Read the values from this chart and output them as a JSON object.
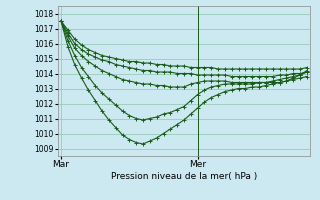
{
  "xlabel": "Pression niveau de la mer( hPa )",
  "bg_color": "#cce8f0",
  "grid_color": "#99ccbb",
  "line_color": "#1a5c1a",
  "marker": "+",
  "ylim": [
    1008.5,
    1018.5
  ],
  "yticks": [
    1009,
    1010,
    1011,
    1012,
    1013,
    1014,
    1015,
    1016,
    1017,
    1018
  ],
  "xtick_labels": [
    "Mar",
    "Mer"
  ],
  "xtick_positions": [
    0,
    20
  ],
  "vline_x": 20,
  "num_points": 37,
  "series": [
    [
      1017.5,
      1016.9,
      1016.3,
      1015.9,
      1015.6,
      1015.4,
      1015.2,
      1015.1,
      1015.0,
      1014.9,
      1014.8,
      1014.8,
      1014.7,
      1014.7,
      1014.6,
      1014.6,
      1014.5,
      1014.5,
      1014.5,
      1014.4,
      1014.4,
      1014.4,
      1014.4,
      1014.3,
      1014.3,
      1014.3,
      1014.3,
      1014.3,
      1014.3,
      1014.3,
      1014.3,
      1014.3,
      1014.3,
      1014.3,
      1014.3,
      1014.3,
      1014.4
    ],
    [
      1017.5,
      1016.7,
      1016.0,
      1015.6,
      1015.3,
      1015.1,
      1014.9,
      1014.8,
      1014.6,
      1014.5,
      1014.4,
      1014.3,
      1014.2,
      1014.2,
      1014.1,
      1014.1,
      1014.1,
      1014.0,
      1014.0,
      1014.0,
      1013.9,
      1013.9,
      1013.9,
      1013.9,
      1013.9,
      1013.8,
      1013.8,
      1013.8,
      1013.8,
      1013.8,
      1013.8,
      1013.8,
      1013.9,
      1013.9,
      1014.0,
      1014.0,
      1014.1
    ],
    [
      1017.5,
      1016.5,
      1015.7,
      1015.2,
      1014.8,
      1014.5,
      1014.2,
      1014.0,
      1013.8,
      1013.6,
      1013.5,
      1013.4,
      1013.3,
      1013.3,
      1013.2,
      1013.2,
      1013.1,
      1013.1,
      1013.1,
      1013.3,
      1013.4,
      1013.5,
      1013.5,
      1013.5,
      1013.5,
      1013.4,
      1013.4,
      1013.4,
      1013.4,
      1013.4,
      1013.4,
      1013.4,
      1013.4,
      1013.5,
      1013.6,
      1013.7,
      1013.8
    ],
    [
      1017.5,
      1016.2,
      1015.2,
      1014.4,
      1013.8,
      1013.2,
      1012.7,
      1012.3,
      1011.9,
      1011.5,
      1011.2,
      1011.0,
      1010.9,
      1011.0,
      1011.1,
      1011.3,
      1011.4,
      1011.6,
      1011.8,
      1012.2,
      1012.6,
      1012.9,
      1013.1,
      1013.2,
      1013.3,
      1013.3,
      1013.3,
      1013.3,
      1013.3,
      1013.4,
      1013.4,
      1013.5,
      1013.6,
      1013.7,
      1013.8,
      1013.9,
      1014.1
    ],
    [
      1017.5,
      1015.8,
      1014.6,
      1013.7,
      1012.9,
      1012.2,
      1011.5,
      1010.9,
      1010.4,
      1009.9,
      1009.6,
      1009.4,
      1009.3,
      1009.5,
      1009.7,
      1010.0,
      1010.3,
      1010.6,
      1010.9,
      1011.3,
      1011.7,
      1012.1,
      1012.4,
      1012.6,
      1012.8,
      1012.9,
      1013.0,
      1013.0,
      1013.1,
      1013.1,
      1013.2,
      1013.3,
      1013.4,
      1013.5,
      1013.7,
      1013.9,
      1014.2
    ]
  ]
}
